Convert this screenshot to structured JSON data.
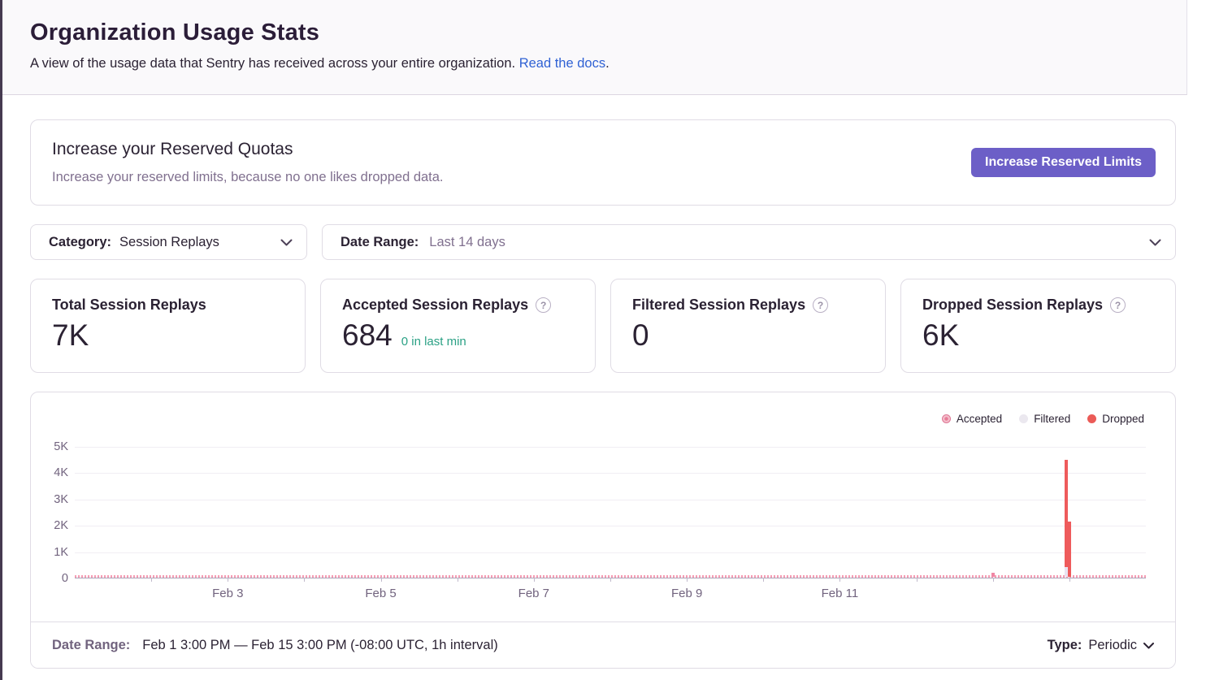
{
  "page": {
    "title": "Organization Usage Stats",
    "subtitle": "A view of the usage data that Sentry has received across your entire organization.",
    "docs_link": "Read the docs",
    "subtitle_period": "."
  },
  "quota_card": {
    "title": "Increase your Reserved Quotas",
    "description": "Increase your reserved limits, because no one likes dropped data.",
    "button_label": "Increase Reserved Limits"
  },
  "filters": {
    "category": {
      "label": "Category:",
      "value": "Session Replays"
    },
    "date_range": {
      "label": "Date Range:",
      "value": "Last 14 days"
    }
  },
  "stat_cards": [
    {
      "title": "Total Session Replays",
      "value": "7K",
      "subtext": "",
      "has_help": false
    },
    {
      "title": "Accepted Session Replays",
      "value": "684",
      "subtext": "0 in last min",
      "has_help": true
    },
    {
      "title": "Filtered Session Replays",
      "value": "0",
      "subtext": "",
      "has_help": true
    },
    {
      "title": "Dropped Session Replays",
      "value": "6K",
      "subtext": "",
      "has_help": true
    }
  ],
  "help_icon_glyph": "?",
  "chart_data": {
    "type": "stacked-bar",
    "title": "",
    "x_range": [
      "Feb 1 3:00 PM",
      "Feb 15 3:00 PM"
    ],
    "interval": "1h",
    "ylim": [
      0,
      5000
    ],
    "y_ticks": [
      {
        "value": 0,
        "label": "0"
      },
      {
        "value": 1000,
        "label": "1K"
      },
      {
        "value": 2000,
        "label": "2K"
      },
      {
        "value": 3000,
        "label": "3K"
      },
      {
        "value": 4000,
        "label": "4K"
      },
      {
        "value": 5000,
        "label": "5K"
      }
    ],
    "x_ticks": [
      {
        "day_float": 2,
        "label": ""
      },
      {
        "day_float": 3,
        "label": "Feb 3"
      },
      {
        "day_float": 4,
        "label": ""
      },
      {
        "day_float": 5,
        "label": "Feb 5"
      },
      {
        "day_float": 6,
        "label": ""
      },
      {
        "day_float": 7,
        "label": "Feb 7"
      },
      {
        "day_float": 8,
        "label": ""
      },
      {
        "day_float": 9,
        "label": "Feb 9"
      },
      {
        "day_float": 10,
        "label": ""
      },
      {
        "day_float": 11,
        "label": "Feb 11"
      },
      {
        "day_float": 12,
        "label": ""
      },
      {
        "day_float": 13,
        "label": ""
      },
      {
        "day_float": 14,
        "label": ""
      }
    ],
    "legend": [
      {
        "label": "Accepted",
        "color": "#F087A5",
        "pattern": true
      },
      {
        "label": "Filtered",
        "color": "#EBE8EF",
        "pattern": false
      },
      {
        "label": "Dropped",
        "color": "#EB5B57",
        "pattern": false
      }
    ],
    "legend_position": "top-right",
    "grid": true,
    "series_colors": {
      "accepted": "#F087A5",
      "dropped": "#EE5B5C",
      "accepted_light_base": "#E9E3F1"
    },
    "baseline_accepted": {
      "note": "tiny accepted bars every hour across the entire range (total 684), rendered as a dashed pink strip on the axis",
      "approx_value_per_hour": 40
    },
    "bars": [
      {
        "series": "accepted",
        "time": "Feb 13 12:00 AM",
        "day_float": 13.0,
        "value": 150,
        "base_accepted": 0
      },
      {
        "series": "dropped",
        "time": "Feb 13 11:00 PM",
        "day_float": 13.96,
        "value": 4450,
        "base_accepted": 370
      },
      {
        "series": "dropped",
        "time": "Feb 14 12:00 AM",
        "day_float": 14.0,
        "value": 2100,
        "base_accepted": 0
      }
    ]
  },
  "chart_footer": {
    "date_range_label": "Date Range:",
    "date_range_value": "Feb 1 3:00 PM — Feb 15 3:00 PM (-08:00 UTC, 1h interval)",
    "type_label": "Type:",
    "type_value": "Periodic"
  },
  "colors": {
    "accent_purple": "#6C5FC7",
    "link_blue": "#3062D4",
    "success_green": "#2BA185",
    "dropped_red": "#EE5B5C",
    "accepted_pink": "#F087A5",
    "border_gray": "#E0DCE5",
    "header_bg": "#FAF9FB"
  }
}
